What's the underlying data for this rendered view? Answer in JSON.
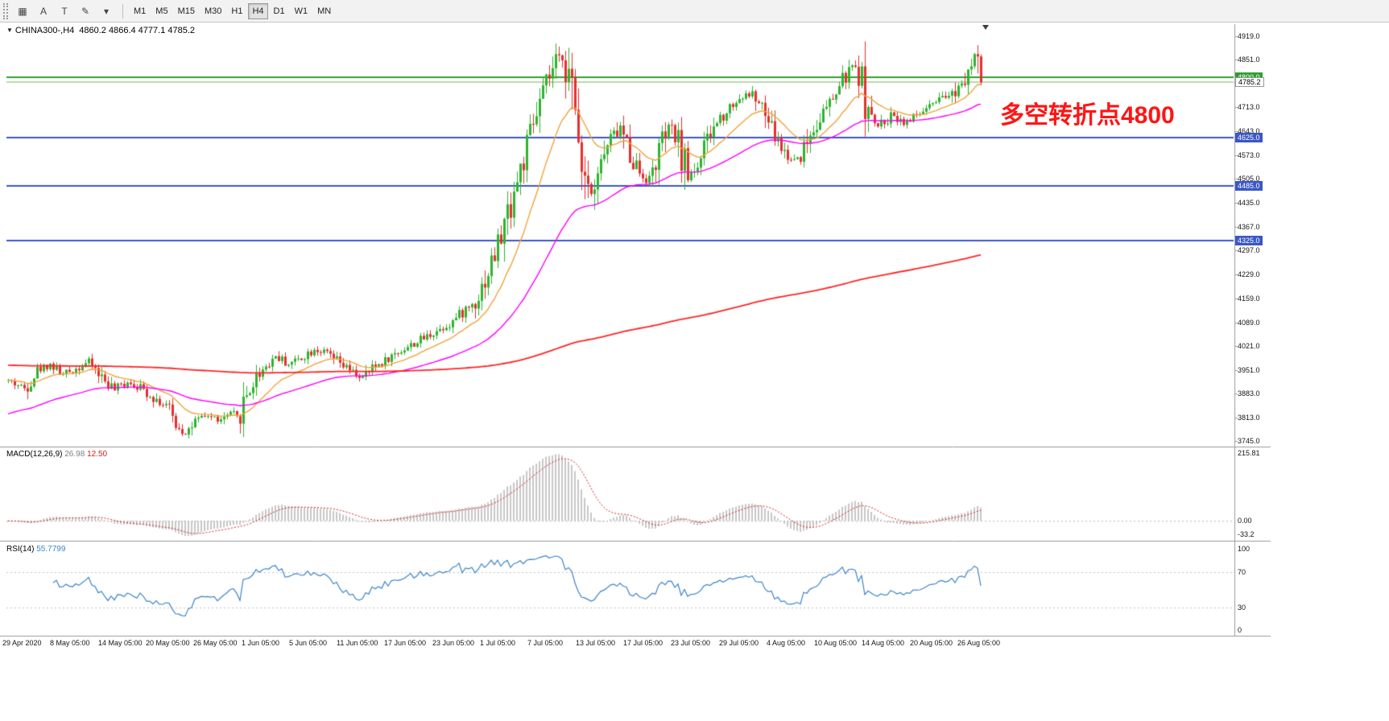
{
  "app": {
    "name": "MetaTrader chart window"
  },
  "toolbar": {
    "icon_buttons": [
      {
        "name": "chart-grid-icon",
        "glyph": "▦"
      },
      {
        "name": "cursor-tool-icon",
        "glyph": "A"
      },
      {
        "name": "text-tool-icon",
        "glyph": "T"
      },
      {
        "name": "draw-color-tool-icon",
        "glyph": "✎"
      },
      {
        "name": "dropdown-arrow-icon",
        "glyph": "▾"
      }
    ],
    "timeframes": [
      "M1",
      "M5",
      "M15",
      "M30",
      "H1",
      "H4",
      "D1",
      "W1",
      "MN"
    ],
    "active_timeframe": "H4"
  },
  "chart": {
    "symbol_period": "CHINA300-,H4",
    "ohlc": "4860.2 4866.4 4777.1 4785.2",
    "annotation": {
      "text": "多空转折点4800",
      "color": "#ff1414"
    },
    "price_axis": {
      "max": 4919.0,
      "min": 3745.0,
      "ticks": [
        "4919.0",
        "4851.0",
        "4713.0",
        "4643.0",
        "4573.0",
        "4505.0",
        "4435.0",
        "4367.0",
        "4297.0",
        "4229.0",
        "4159.0",
        "4089.0",
        "4021.0",
        "3951.0",
        "3883.0",
        "3813.0",
        "3745.0"
      ]
    },
    "current_price": {
      "value": 4785.2,
      "label": "4785.2",
      "line_color": "#74b35c",
      "badge_bg": "#ffffff",
      "badge_fg": "#000000",
      "badge_border": "#999999"
    },
    "hlines": [
      {
        "price": 4800.0,
        "label": "4800.0",
        "color": "#2f9e2f",
        "width": 2,
        "badge_bg": "#2f9e2f",
        "badge_fg": "#ffffff"
      },
      {
        "price": 4625.0,
        "label": "4625.0",
        "color": "#3a57c4",
        "width": 2,
        "badge_bg": "#3a57c4",
        "badge_fg": "#ffffff"
      },
      {
        "price": 4485.0,
        "label": "4485.0",
        "color": "#3a57c4",
        "width": 2,
        "badge_bg": "#3a57c4",
        "badge_fg": "#ffffff"
      },
      {
        "price": 4325.0,
        "label": "4325.0",
        "color": "#3a57c4",
        "width": 2,
        "badge_bg": "#3a57c4",
        "badge_fg": "#ffffff"
      }
    ],
    "time_axis": [
      "29 Apr 2020",
      "8 May 05:00",
      "14 May 05:00",
      "20 May 05:00",
      "26 May 05:00",
      "1 Jun 05:00",
      "5 Jun 05:00",
      "11 Jun 05:00",
      "17 Jun 05:00",
      "23 Jun 05:00",
      "1 Jul 05:00",
      "7 Jul 05:00",
      "13 Jul 05:00",
      "17 Jul 05:00",
      "23 Jul 05:00",
      "29 Jul 05:00",
      "4 Aug 05:00",
      "10 Aug 05:00",
      "14 Aug 05:00",
      "20 Aug 05:00",
      "26 Aug 05:00"
    ]
  },
  "indicators": {
    "macd": {
      "label": "MACD(12,26,9)",
      "value_main": "26.98",
      "value_signal": "12.50",
      "axis_max": "215.81",
      "axis_zero": "0.00",
      "axis_min": "-33.2"
    },
    "rsi": {
      "label": "RSI(14)",
      "value": "55.7799",
      "axis_max": "100",
      "axis_upper": "70",
      "axis_lower": "30",
      "axis_min": "0",
      "levels": [
        70,
        30
      ]
    }
  },
  "colors": {
    "up_candle": "#2db42d",
    "down_candle": "#e62e2e",
    "ma_fast": "#f2a33c",
    "ma_mid": "#ff00ff",
    "ma_slow": "#ff2626",
    "macd_histogram": "#b5b5b5",
    "macd_signal": "#d42a2a",
    "rsi_line": "#3d85c8",
    "toolbar_bg": "#f2f2f2",
    "chart_bg": "#ffffff"
  },
  "chart_data": {
    "type": "candlestick",
    "symbol": "CHINA300-",
    "timeframe": "H4",
    "title": "CHINA300- H4 candlestick chart with EMA overlays, MACD(12,26,9) and RSI(14)",
    "x_range": [
      "29 Apr 2020",
      "28 Aug 2020"
    ],
    "y_range": [
      3745.0,
      4919.0
    ],
    "bars": 303,
    "last_candle": {
      "open": 4860.2,
      "high": 4866.4,
      "low": 4777.1,
      "close": 4785.2
    },
    "close_keypoints": [
      [
        0,
        3920
      ],
      [
        5,
        3898
      ],
      [
        9,
        3950
      ],
      [
        13,
        3968
      ],
      [
        17,
        3938
      ],
      [
        21,
        3955
      ],
      [
        25,
        3975
      ],
      [
        29,
        3930
      ],
      [
        33,
        3892
      ],
      [
        37,
        3918
      ],
      [
        41,
        3900
      ],
      [
        45,
        3872
      ],
      [
        49,
        3845
      ],
      [
        52,
        3795
      ],
      [
        55,
        3768
      ],
      [
        58,
        3800
      ],
      [
        62,
        3818
      ],
      [
        66,
        3804
      ],
      [
        69,
        3825
      ],
      [
        71,
        3808
      ],
      [
        74,
        3880
      ],
      [
        78,
        3945
      ],
      [
        83,
        3992
      ],
      [
        87,
        3968
      ],
      [
        91,
        3988
      ],
      [
        95,
        4012
      ],
      [
        99,
        3998
      ],
      [
        103,
        3968
      ],
      [
        107,
        3942
      ],
      [
        110,
        3928
      ],
      [
        114,
        3962
      ],
      [
        118,
        3985
      ],
      [
        122,
        4008
      ],
      [
        127,
        4032
      ],
      [
        132,
        4060
      ],
      [
        137,
        4085
      ],
      [
        141,
        4118
      ],
      [
        145,
        4150
      ],
      [
        149,
        4235
      ],
      [
        153,
        4340
      ],
      [
        157,
        4470
      ],
      [
        161,
        4590
      ],
      [
        164,
        4690
      ],
      [
        167,
        4775
      ],
      [
        170,
        4840
      ],
      [
        172,
        4862
      ],
      [
        174,
        4800
      ],
      [
        176,
        4680
      ],
      [
        179,
        4530
      ],
      [
        181,
        4468
      ],
      [
        184,
        4552
      ],
      [
        187,
        4618
      ],
      [
        190,
        4655
      ],
      [
        193,
        4580
      ],
      [
        196,
        4525
      ],
      [
        199,
        4500
      ],
      [
        202,
        4590
      ],
      [
        205,
        4655
      ],
      [
        208,
        4610
      ],
      [
        211,
        4512
      ],
      [
        214,
        4548
      ],
      [
        217,
        4610
      ],
      [
        220,
        4672
      ],
      [
        224,
        4715
      ],
      [
        228,
        4745
      ],
      [
        231,
        4752
      ],
      [
        234,
        4705
      ],
      [
        237,
        4648
      ],
      [
        240,
        4595
      ],
      [
        243,
        4560
      ],
      [
        246,
        4575
      ],
      [
        249,
        4635
      ],
      [
        252,
        4688
      ],
      [
        255,
        4720
      ],
      [
        258,
        4775
      ],
      [
        261,
        4818
      ],
      [
        263,
        4830
      ],
      [
        265,
        4788
      ],
      [
        267,
        4700
      ],
      [
        269,
        4655
      ],
      [
        272,
        4672
      ],
      [
        275,
        4692
      ],
      [
        278,
        4668
      ],
      [
        281,
        4682
      ],
      [
        284,
        4702
      ],
      [
        287,
        4718
      ],
      [
        290,
        4735
      ],
      [
        293,
        4752
      ],
      [
        296,
        4790
      ],
      [
        298,
        4838
      ],
      [
        300,
        4868
      ],
      [
        301,
        4860.2
      ],
      [
        302,
        4785.2
      ]
    ],
    "overlays": [
      {
        "name": "ma-fast",
        "type": "ema",
        "period": 18,
        "seed": null
      },
      {
        "name": "ma-mid",
        "type": "ema",
        "period": 60,
        "seed": 3820
      },
      {
        "name": "ma-slow",
        "type": "ema",
        "period": 500,
        "seed": 3965
      }
    ],
    "indicators": [
      {
        "type": "macd",
        "fast": 12,
        "slow": 26,
        "signal": 9,
        "current": [
          26.98,
          12.5
        ]
      },
      {
        "type": "rsi",
        "period": 14,
        "current": 55.7799
      }
    ],
    "noise_seed": 42
  }
}
